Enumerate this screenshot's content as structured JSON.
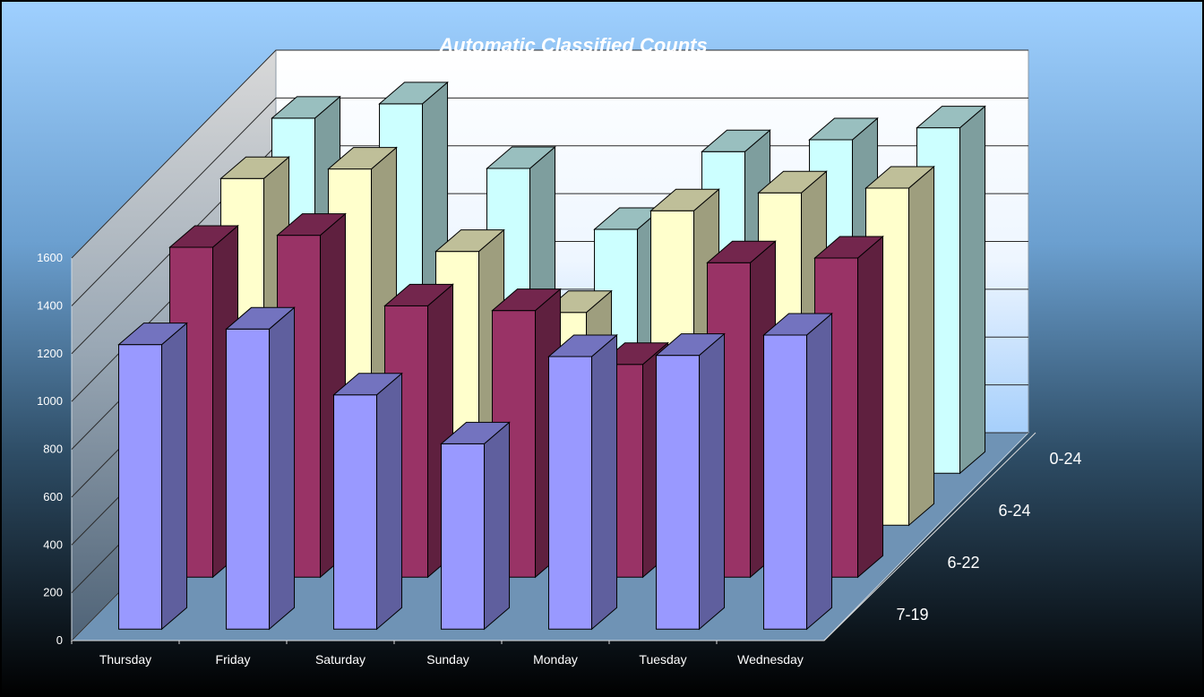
{
  "chart_data": {
    "type": "bar",
    "title": "Automatic Classified Counts",
    "categories": [
      "Thursday",
      "Friday",
      "Saturday",
      "Sunday",
      "Monday",
      "Tuesday",
      "Wednesday"
    ],
    "series": [
      {
        "name": "7-19",
        "values": [
          1190,
          1255,
          980,
          775,
          1140,
          1145,
          1230
        ],
        "color": "#9999FF"
      },
      {
        "name": "6-22",
        "values": [
          1380,
          1430,
          1135,
          1115,
          890,
          1315,
          1335
        ],
        "color": "#993366"
      },
      {
        "name": "6-24",
        "values": [
          1450,
          1490,
          1145,
          890,
          1315,
          1390,
          1410
        ],
        "color": "#FFFFCC"
      },
      {
        "name": "0-24",
        "values": [
          1485,
          1545,
          1275,
          1020,
          1345,
          1395,
          1445
        ],
        "color": "#CCFFFF"
      }
    ],
    "ylim": [
      0,
      1600
    ],
    "yticks": [
      "0",
      "200",
      "400",
      "600",
      "800",
      "1000",
      "1200",
      "1400",
      "1600"
    ],
    "grid": true,
    "legend": "none"
  }
}
